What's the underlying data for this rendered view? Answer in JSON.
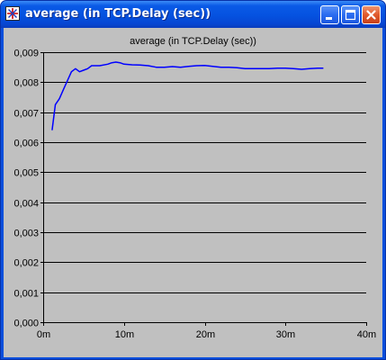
{
  "window": {
    "title": "average (in TCP.Delay (sec))",
    "app_icon": "opnet-chart-icon",
    "buttons": {
      "minimize_icon": "minimize-icon",
      "maximize_icon": "maximize-icon",
      "close_icon": "close-icon"
    }
  },
  "colors": {
    "titlebar": "#0552e0",
    "plot_background": "#c0c0c0",
    "gridline": "#000000",
    "series_line": "#0000ff",
    "close_button": "#e05a2c"
  },
  "chart_data": {
    "type": "line",
    "title": "average (in TCP.Delay (sec))",
    "xlabel": "",
    "ylabel": "",
    "xlim": [
      0,
      40
    ],
    "ylim": [
      0,
      0.009
    ],
    "grid": true,
    "x_ticks": [
      0,
      10,
      20,
      30,
      40
    ],
    "x_tick_labels": [
      "0m",
      "10m",
      "20m",
      "30m",
      "40m"
    ],
    "y_ticks": [
      0,
      0.001,
      0.002,
      0.003,
      0.004,
      0.005,
      0.006,
      0.007,
      0.008,
      0.009
    ],
    "y_tick_labels": [
      "0,000",
      "0,001",
      "0,002",
      "0,003",
      "0,004",
      "0,005",
      "0,006",
      "0,007",
      "0,008",
      "0,009"
    ],
    "series": [
      {
        "x": [
          1.1,
          1.5,
          2.0,
          2.5,
          3.0,
          3.5,
          4.0,
          4.5,
          5.0,
          5.5,
          6.0,
          7.0,
          8.0,
          8.5,
          9.0,
          9.5,
          10.0,
          11.0,
          12.0,
          13.0,
          14.0,
          15.0,
          16.0,
          17.0,
          18.0,
          19.0,
          20.0,
          21.0,
          22.0,
          23.0,
          24.0,
          25.0,
          26.0,
          27.0,
          28.0,
          29.0,
          30.0,
          31.0,
          32.0,
          33.0,
          34.0,
          34.7
        ],
        "y": [
          0.0064,
          0.00725,
          0.00745,
          0.00775,
          0.00805,
          0.00835,
          0.00845,
          0.00835,
          0.0084,
          0.00845,
          0.00855,
          0.00855,
          0.0086,
          0.00865,
          0.00867,
          0.00865,
          0.0086,
          0.00858,
          0.00857,
          0.00855,
          0.0085,
          0.0085,
          0.00852,
          0.0085,
          0.00853,
          0.00855,
          0.00856,
          0.00853,
          0.0085,
          0.0085,
          0.00848,
          0.00845,
          0.00845,
          0.00845,
          0.00845,
          0.00847,
          0.00847,
          0.00845,
          0.00843,
          0.00845,
          0.00847,
          0.00847
        ]
      }
    ]
  }
}
